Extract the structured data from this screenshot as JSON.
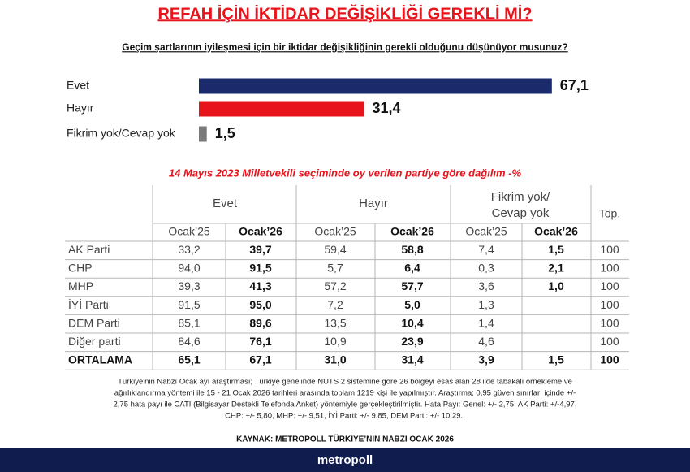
{
  "chart_data": {
    "type": "hbar",
    "title": "REFAH İÇİN İKTİDAR DEĞİŞİKLİĞİ GEREKLİ Mİ?",
    "subtitle": "Geçim şartlarının iyileşmesi için bir iktidar değişikliğinin gerekli olduğunu düşünüyor musunuz?",
    "categories": [
      "Evet",
      "Hayır",
      "Fikrim yok/Cevap yok"
    ],
    "values": [
      67.1,
      31.4,
      1.5
    ],
    "value_labels": [
      "67,1",
      "31,4",
      "1,5"
    ],
    "colors": [
      "#1b2a6b",
      "#e8141c",
      "#7a7a7a"
    ]
  },
  "table": {
    "title": "14 Mayıs 2023 Milletvekili seçiminde oy verilen partiye göre dağılım -%",
    "groups": [
      [
        "Evet"
      ],
      [
        "Hayır"
      ],
      [
        "Fikrim yok/",
        "Cevap yok"
      ]
    ],
    "total_header": "Top.",
    "subheaders": [
      "Ocak’25",
      "Ocak’26",
      "Ocak’25",
      "Ocak’26",
      "Ocak’25",
      "Ocak’26"
    ],
    "rows": [
      {
        "label": "AK Parti",
        "cells": [
          "33,2",
          "39,7",
          "59,4",
          "58,8",
          "7,4",
          "1,5",
          "100"
        ]
      },
      {
        "label": "CHP",
        "cells": [
          "94,0",
          "91,5",
          "5,7",
          "6,4",
          "0,3",
          "2,1",
          "100"
        ]
      },
      {
        "label": "MHP",
        "cells": [
          "39,3",
          "41,3",
          "57,2",
          "57,7",
          "3,6",
          "1,0",
          "100"
        ]
      },
      {
        "label": "İYİ Parti",
        "cells": [
          "91,5",
          "95,0",
          "7,2",
          "5,0",
          "1,3",
          null,
          "100"
        ]
      },
      {
        "label": "DEM Parti",
        "cells": [
          "85,1",
          "89,6",
          "13,5",
          "10,4",
          "1,4",
          null,
          "100"
        ]
      },
      {
        "label": "Diğer parti",
        "cells": [
          "84,6",
          "76,1",
          "10,9",
          "23,9",
          "4,6",
          null,
          "100"
        ]
      },
      {
        "label": "ORTALAMA",
        "cells": [
          "65,1",
          "67,1",
          "31,0",
          "31,4",
          "3,9",
          "1,5",
          "100"
        ]
      }
    ]
  },
  "footnote": [
    "Türkiye'nin Nabzı Ocak ayı araştırması; Türkiye genelinde NUTS 2 sistemine göre 26 bölgeyi esas alan 28 ilde tabakalı örnekleme ve",
    "ağırlıklandırma yöntemi ile 15 - 21 Ocak 2026 tarihleri arasında toplam 1219 kişi ile yapılmıştır. Araştırma; 0,95 güven sınırları içinde +/-",
    "2,75 hata payı ile CATI (Bilgisayar Destekli Telefonda Anket) yöntemiyle gerçekleştirilmiştir. Hata Payı: Genel: +/- 2,75, AK Parti: +/-4,97,",
    "CHP: +/- 5,80, MHP: +/- 9,51, İYİ Parti: +/- 9.85, DEM Parti: +/- 10,29.."
  ],
  "source": "KAYNAK: METROPOLL TÜRKİYE’NİN NABZI OCAK 2026",
  "brand": "metropoll"
}
